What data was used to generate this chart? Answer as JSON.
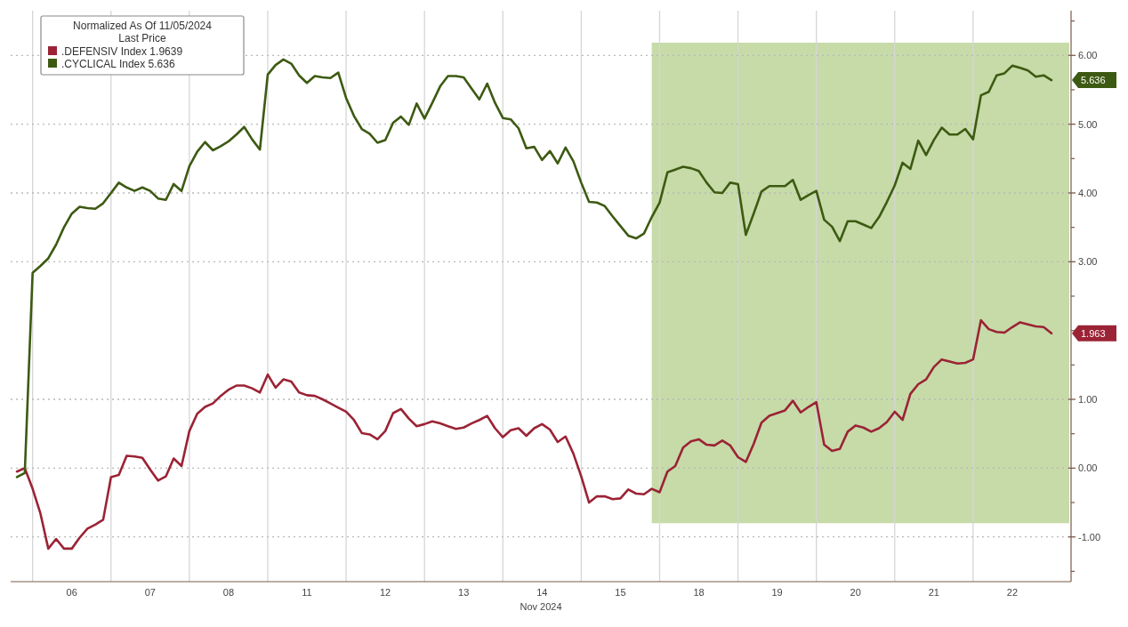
{
  "chart_data": {
    "type": "line",
    "xlabel": "Nov 2024",
    "legend_title": "Normalized As Of 11/05/2024\nLast Price",
    "legend": "top left",
    "grid": "y",
    "line_style": "solid",
    "categories": [
      null,
      null,
      null,
      null,
      null,
      null,
      null,
      "06",
      null,
      null,
      null,
      null,
      null,
      null,
      null,
      null,
      null,
      "07",
      null,
      null,
      null,
      null,
      null,
      null,
      null,
      null,
      null,
      "08",
      null,
      null,
      null,
      null,
      null,
      null,
      null,
      null,
      null,
      "11",
      null,
      null,
      null,
      null,
      null,
      null,
      null,
      null,
      null,
      "12",
      null,
      null,
      null,
      null,
      null,
      null,
      null,
      null,
      null,
      "13",
      null,
      null,
      null,
      null,
      null,
      null,
      null,
      null,
      null,
      "14",
      null,
      null,
      null,
      null,
      null,
      null,
      null,
      null,
      null,
      "15",
      null,
      null,
      null,
      null,
      null,
      null,
      null,
      null,
      null,
      "18",
      null,
      null,
      null,
      null,
      null,
      null,
      null,
      null,
      null,
      "19",
      null,
      null,
      null,
      null,
      null,
      null,
      null,
      null,
      null,
      "20",
      null,
      null,
      null,
      null,
      null,
      null,
      null,
      null,
      null,
      "21",
      null,
      null,
      null,
      null,
      null,
      null,
      null,
      null,
      null,
      "22",
      null,
      null,
      null,
      null,
      null
    ],
    "ylim": [
      -1.65,
      6.65
    ],
    "yticks": [
      {
        "value": -1,
        "label": "-1.00"
      },
      {
        "value": 0,
        "label": "0.00"
      },
      {
        "value": 1,
        "label": "1.00"
      },
      {
        "value": 3,
        "label": "3.00"
      },
      {
        "value": 4,
        "label": "4.00"
      },
      {
        "value": 5,
        "label": "5.00"
      },
      {
        "value": 6,
        "label": "6.00"
      }
    ],
    "annotations": [
      "1.963",
      "5.636"
    ],
    "series": [
      {
        "name": ".DEFENSIV Index 1.9639",
        "color": "#9b2335",
        "values": [
          -0.05,
          0.0,
          -0.3,
          -0.66,
          -1.17,
          -1.03,
          -1.17,
          -1.17,
          -1.01,
          -0.88,
          -0.82,
          -0.75,
          -0.13,
          -0.1,
          0.18,
          0.17,
          0.15,
          -0.02,
          -0.18,
          -0.12,
          0.14,
          0.03,
          0.54,
          0.79,
          0.89,
          0.94,
          1.05,
          1.14,
          1.2,
          1.2,
          1.16,
          1.1,
          1.36,
          1.17,
          1.29,
          1.26,
          1.1,
          1.06,
          1.05,
          1.0,
          0.94,
          0.88,
          0.82,
          0.7,
          0.51,
          0.49,
          0.42,
          0.54,
          0.8,
          0.86,
          0.72,
          0.61,
          0.64,
          0.68,
          0.65,
          0.61,
          0.57,
          0.59,
          0.65,
          0.7,
          0.76,
          0.58,
          0.45,
          0.55,
          0.58,
          0.47,
          0.58,
          0.64,
          0.56,
          0.38,
          0.46,
          0.21,
          -0.12,
          -0.5,
          -0.41,
          -0.41,
          -0.45,
          -0.44,
          -0.31,
          -0.37,
          -0.38,
          -0.3,
          -0.35,
          -0.05,
          0.03,
          0.3,
          0.39,
          0.42,
          0.34,
          0.33,
          0.4,
          0.33,
          0.16,
          0.09,
          0.35,
          0.66,
          0.76,
          0.8,
          0.84,
          0.98,
          0.81,
          0.89,
          0.96,
          0.34,
          0.25,
          0.28,
          0.53,
          0.62,
          0.59,
          0.53,
          0.58,
          0.67,
          0.82,
          0.7,
          1.08,
          1.22,
          1.29,
          1.47,
          1.58,
          1.55,
          1.52,
          1.53,
          1.58,
          2.15,
          2.02,
          1.98,
          1.97,
          2.05,
          2.12,
          2.09,
          2.06,
          2.05,
          1.96
        ]
      },
      {
        "name": ".CYCLICAL Index 5.636",
        "color": "#3d5a12",
        "values": [
          -0.13,
          -0.07,
          2.84,
          2.94,
          3.05,
          3.25,
          3.5,
          3.7,
          3.8,
          3.78,
          3.77,
          3.85,
          4.0,
          4.15,
          4.08,
          4.03,
          4.08,
          4.03,
          3.92,
          3.9,
          4.13,
          4.03,
          4.39,
          4.6,
          4.74,
          4.62,
          4.68,
          4.75,
          4.85,
          4.96,
          4.78,
          4.63,
          5.72,
          5.86,
          5.94,
          5.88,
          5.71,
          5.6,
          5.7,
          5.68,
          5.67,
          5.75,
          5.38,
          5.12,
          4.93,
          4.86,
          4.73,
          4.77,
          5.02,
          5.11,
          4.99,
          5.3,
          5.08,
          5.31,
          5.55,
          5.7,
          5.7,
          5.68,
          5.52,
          5.36,
          5.59,
          5.31,
          5.09,
          5.07,
          4.94,
          4.65,
          4.67,
          4.48,
          4.61,
          4.43,
          4.66,
          4.46,
          4.15,
          3.87,
          3.86,
          3.81,
          3.66,
          3.52,
          3.38,
          3.34,
          3.41,
          3.65,
          3.86,
          4.3,
          4.34,
          4.38,
          4.36,
          4.32,
          4.15,
          4.01,
          4.0,
          4.15,
          4.13,
          3.39,
          3.7,
          4.02,
          4.1,
          4.1,
          4.1,
          4.19,
          3.9,
          3.97,
          4.03,
          3.61,
          3.51,
          3.3,
          3.59,
          3.59,
          3.54,
          3.49,
          3.65,
          3.87,
          4.11,
          4.44,
          4.35,
          4.76,
          4.55,
          4.77,
          4.95,
          4.85,
          4.85,
          4.93,
          4.78,
          5.42,
          5.47,
          5.71,
          5.74,
          5.85,
          5.82,
          5.78,
          5.69,
          5.71,
          5.64
        ]
      }
    ]
  }
}
